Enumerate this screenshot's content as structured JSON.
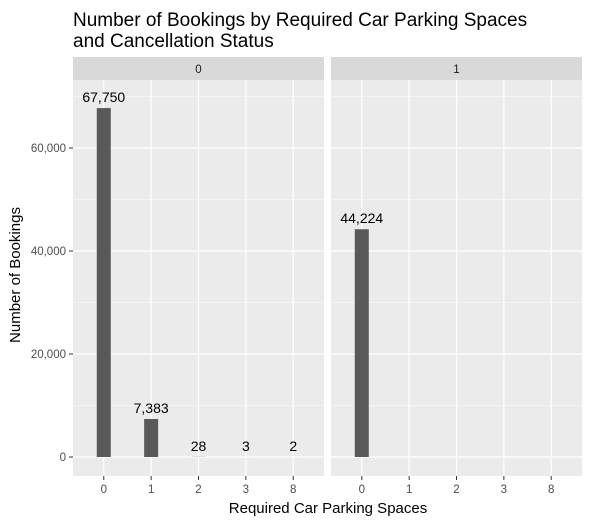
{
  "chart_data": {
    "type": "bar",
    "title_lines": [
      "Number of Bookings by Required Car Parking Spaces",
      "and Cancellation Status"
    ],
    "xlabel": "Required Car Parking Spaces",
    "ylabel": "Number of Bookings",
    "categories": [
      "0",
      "1",
      "2",
      "3",
      "8"
    ],
    "y_ticks": [
      0,
      20000,
      40000,
      60000
    ],
    "y_tick_labels": [
      "0",
      "20,000",
      "40,000",
      "60,000"
    ],
    "ylim": [
      0,
      71000
    ],
    "grid": true,
    "facets": [
      {
        "strip_label": "0",
        "values": [
          67750,
          7383,
          28,
          3,
          2
        ],
        "value_labels": [
          "67,750",
          "7,383",
          "28",
          "3",
          "2"
        ]
      },
      {
        "strip_label": "1",
        "values": [
          44224,
          null,
          null,
          null,
          null
        ],
        "value_labels": [
          "44,224",
          "",
          "",
          "",
          ""
        ]
      }
    ],
    "colors": {
      "bar": "#595959",
      "panel_bg": "#ebebeb",
      "grid": "#ffffff",
      "strip_bg": "#d9d9d9"
    }
  }
}
